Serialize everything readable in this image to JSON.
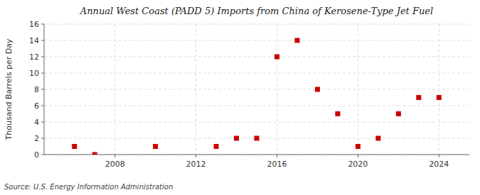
{
  "chart_data": {
    "type": "scatter",
    "title": "Annual West Coast (PADD 5) Imports from China of Kerosene-Type Jet Fuel",
    "ylabel": "Thousand Barrels per Day",
    "annotations": [
      "Source: U.S. Energy Information Administration"
    ],
    "x": [
      2006,
      2007,
      2010,
      2013,
      2014,
      2015,
      2016,
      2017,
      2018,
      2019,
      2020,
      2021,
      2022,
      2023,
      2024
    ],
    "values": [
      1,
      0,
      1,
      1,
      2,
      2,
      12,
      14,
      8,
      5,
      1,
      2,
      5,
      7,
      7
    ],
    "color": "#cc0000",
    "marker": "square",
    "xlim": [
      2004.5,
      2025.5
    ],
    "ylim": [
      0,
      16
    ],
    "xticks": [
      2008,
      2012,
      2016,
      2020,
      2024
    ],
    "yticks": [
      0,
      2,
      4,
      6,
      8,
      10,
      12,
      14,
      16
    ],
    "grid": true
  }
}
